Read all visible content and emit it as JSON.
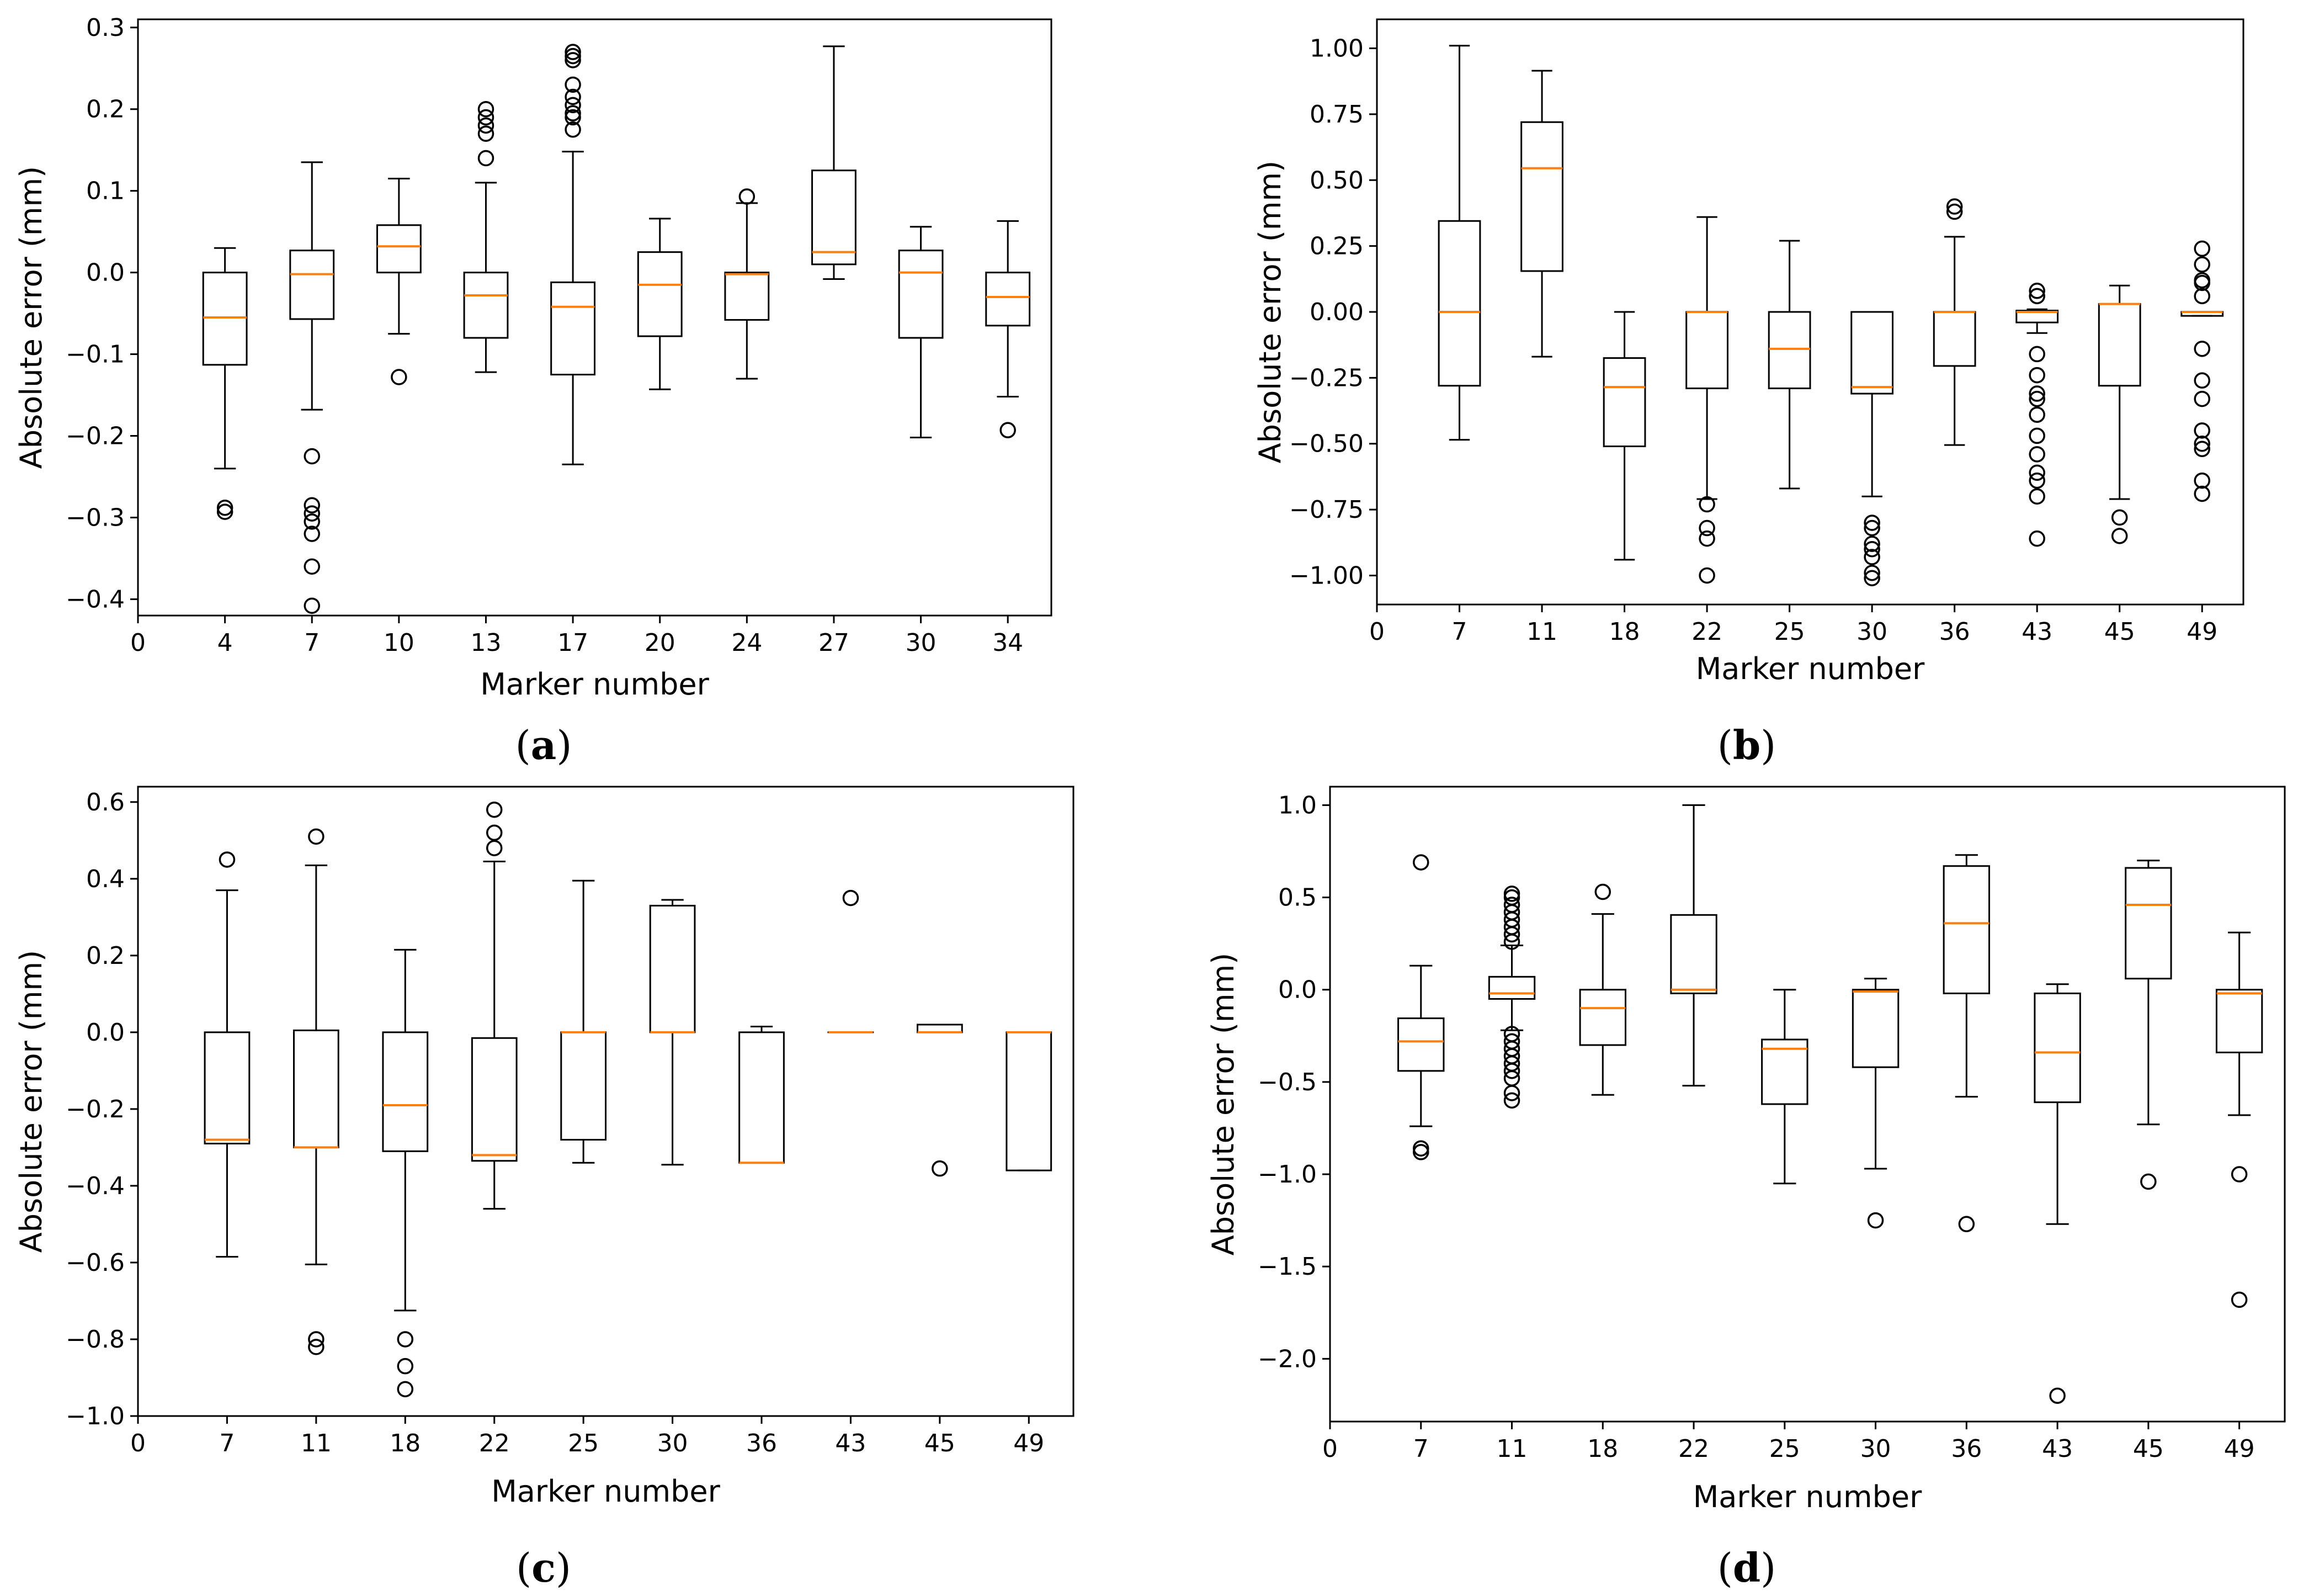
{
  "chart_data": [
    {
      "type": "box",
      "title": "",
      "caption_letter": "a",
      "xlabel": "Marker number",
      "ylabel": "Absolute error (mm)",
      "x_ticks": [
        "0",
        "4",
        "7",
        "10",
        "13",
        "17",
        "20",
        "24",
        "27",
        "30",
        "34"
      ],
      "ylim": [
        -0.42,
        0.31
      ],
      "y_ticks": [
        0.3,
        0.2,
        0.1,
        0.0,
        -0.1,
        -0.2,
        -0.3,
        -0.4
      ],
      "y_tick_labels": [
        "0.3",
        "0.2",
        "0.1",
        "0.0",
        "−0.1",
        "−0.2",
        "−0.3",
        "−0.4"
      ],
      "boxes": [
        {
          "label": "4",
          "whisker_low": -0.24,
          "q1": -0.113,
          "median": -0.055,
          "q3": 0.0,
          "whisker_high": 0.03,
          "outliers": [
            -0.288,
            -0.293
          ]
        },
        {
          "label": "7",
          "whisker_low": -0.168,
          "q1": -0.057,
          "median": -0.002,
          "q3": 0.027,
          "whisker_high": 0.135,
          "outliers": [
            -0.225,
            -0.285,
            -0.295,
            -0.305,
            -0.32,
            -0.36,
            -0.408
          ]
        },
        {
          "label": "10",
          "whisker_low": -0.075,
          "q1": 0.0,
          "median": 0.032,
          "q3": 0.058,
          "whisker_high": 0.115,
          "outliers": [
            -0.128
          ]
        },
        {
          "label": "13",
          "whisker_low": -0.122,
          "q1": -0.08,
          "median": -0.028,
          "q3": 0.0,
          "whisker_high": 0.11,
          "outliers": [
            0.14,
            0.17,
            0.18,
            0.19,
            0.2
          ]
        },
        {
          "label": "17",
          "whisker_low": -0.235,
          "q1": -0.125,
          "median": -0.042,
          "q3": -0.012,
          "whisker_high": 0.148,
          "outliers": [
            0.175,
            0.19,
            0.195,
            0.205,
            0.215,
            0.23,
            0.26,
            0.265,
            0.27
          ]
        },
        {
          "label": "20",
          "whisker_low": -0.143,
          "q1": -0.078,
          "median": -0.015,
          "q3": 0.025,
          "whisker_high": 0.066,
          "outliers": []
        },
        {
          "label": "24",
          "whisker_low": -0.13,
          "q1": -0.058,
          "median": -0.002,
          "q3": 0.0,
          "whisker_high": 0.085,
          "outliers": [
            0.093
          ]
        },
        {
          "label": "27",
          "whisker_low": -0.008,
          "q1": 0.01,
          "median": 0.025,
          "q3": 0.125,
          "whisker_high": 0.277,
          "outliers": []
        },
        {
          "label": "30",
          "whisker_low": -0.202,
          "q1": -0.08,
          "median": 0.0,
          "q3": 0.027,
          "whisker_high": 0.056,
          "outliers": []
        },
        {
          "label": "34",
          "whisker_low": -0.152,
          "q1": -0.065,
          "median": -0.03,
          "q3": 0.0,
          "whisker_high": 0.063,
          "outliers": [
            -0.193
          ]
        }
      ]
    },
    {
      "type": "box",
      "title": "",
      "caption_letter": "b",
      "xlabel": "Marker number",
      "ylabel": "Absolute error (mm)",
      "x_ticks": [
        "0",
        "7",
        "11",
        "18",
        "22",
        "25",
        "30",
        "36",
        "43",
        "45",
        "49"
      ],
      "ylim": [
        -1.11,
        1.11
      ],
      "y_ticks": [
        1.0,
        0.75,
        0.5,
        0.25,
        0.0,
        -0.25,
        -0.5,
        -0.75,
        -1.0
      ],
      "y_tick_labels": [
        "1.00",
        "0.75",
        "0.50",
        "0.25",
        "0.00",
        "−0.25",
        "−0.50",
        "−0.75",
        "−1.00"
      ],
      "boxes": [
        {
          "label": "7",
          "whisker_low": -0.485,
          "q1": -0.28,
          "median": 0.0,
          "q3": 0.345,
          "whisker_high": 1.01,
          "outliers": []
        },
        {
          "label": "11",
          "whisker_low": -0.17,
          "q1": 0.155,
          "median": 0.545,
          "q3": 0.72,
          "whisker_high": 0.915,
          "outliers": []
        },
        {
          "label": "18",
          "whisker_low": -0.94,
          "q1": -0.51,
          "median": -0.285,
          "q3": -0.175,
          "whisker_high": 0.0,
          "outliers": []
        },
        {
          "label": "22",
          "whisker_low": -0.71,
          "q1": -0.29,
          "median": 0.0,
          "q3": 0.0,
          "whisker_high": 0.36,
          "outliers": [
            -0.73,
            -0.82,
            -0.86,
            -1.0
          ]
        },
        {
          "label": "25",
          "whisker_low": -0.67,
          "q1": -0.29,
          "median": -0.14,
          "q3": 0.0,
          "whisker_high": 0.27,
          "outliers": []
        },
        {
          "label": "30",
          "whisker_low": -0.7,
          "q1": -0.31,
          "median": -0.285,
          "q3": 0.0,
          "whisker_high": 0.0,
          "outliers": [
            -0.8,
            -0.82,
            -0.88,
            -0.9,
            -0.93,
            -0.99,
            -1.01
          ]
        },
        {
          "label": "36",
          "whisker_low": -0.505,
          "q1": -0.205,
          "median": 0.0,
          "q3": 0.0,
          "whisker_high": 0.285,
          "outliers": [
            0.38,
            0.4
          ]
        },
        {
          "label": "43",
          "whisker_low": -0.08,
          "q1": -0.04,
          "median": 0.0,
          "q3": 0.005,
          "whisker_high": 0.01,
          "outliers": [
            0.06,
            0.08,
            -0.16,
            -0.24,
            -0.31,
            -0.33,
            -0.39,
            -0.47,
            -0.54,
            -0.61,
            -0.64,
            -0.7,
            -0.86
          ]
        },
        {
          "label": "45",
          "whisker_low": -0.71,
          "q1": -0.28,
          "median": 0.03,
          "q3": 0.03,
          "whisker_high": 0.1,
          "outliers": [
            -0.78,
            -0.85
          ]
        },
        {
          "label": "49",
          "whisker_low": -0.015,
          "q1": -0.015,
          "median": 0.0,
          "q3": 0.0,
          "whisker_high": 0.0,
          "outliers": [
            0.24,
            0.18,
            0.12,
            0.11,
            0.06,
            -0.14,
            -0.26,
            -0.33,
            -0.45,
            -0.5,
            -0.52,
            -0.64,
            -0.69
          ]
        }
      ]
    },
    {
      "type": "box",
      "title": "",
      "caption_letter": "c",
      "xlabel": "Marker number",
      "ylabel": "Absolute error (mm)",
      "x_ticks": [
        "0",
        "7",
        "11",
        "18",
        "22",
        "25",
        "30",
        "36",
        "43",
        "45",
        "49"
      ],
      "ylim": [
        -1.0,
        0.64
      ],
      "y_ticks": [
        0.6,
        0.4,
        0.2,
        0.0,
        -0.2,
        -0.4,
        -0.6,
        -0.8,
        -1.0
      ],
      "y_tick_labels": [
        "0.6",
        "0.4",
        "0.2",
        "0.0",
        "−0.2",
        "−0.4",
        "−0.6",
        "−0.8",
        "−1.0"
      ],
      "boxes": [
        {
          "label": "7",
          "whisker_low": -0.585,
          "q1": -0.29,
          "median": -0.28,
          "q3": 0.0,
          "whisker_high": 0.37,
          "outliers": [
            0.45
          ]
        },
        {
          "label": "11",
          "whisker_low": -0.605,
          "q1": -0.3,
          "median": -0.3,
          "q3": 0.005,
          "whisker_high": 0.435,
          "outliers": [
            0.51,
            -0.8,
            -0.82
          ]
        },
        {
          "label": "18",
          "whisker_low": -0.725,
          "q1": -0.31,
          "median": -0.19,
          "q3": 0.0,
          "whisker_high": 0.215,
          "outliers": [
            -0.8,
            -0.87,
            -0.93
          ]
        },
        {
          "label": "22",
          "whisker_low": -0.46,
          "q1": -0.335,
          "median": -0.32,
          "q3": -0.015,
          "whisker_high": 0.445,
          "outliers": [
            0.48,
            0.52,
            0.58
          ]
        },
        {
          "label": "25",
          "whisker_low": -0.34,
          "q1": -0.28,
          "median": 0.0,
          "q3": 0.0,
          "whisker_high": 0.395,
          "outliers": []
        },
        {
          "label": "30",
          "whisker_low": -0.345,
          "q1": 0.0,
          "median": 0.0,
          "q3": 0.33,
          "whisker_high": 0.345,
          "outliers": []
        },
        {
          "label": "36",
          "whisker_low": -0.34,
          "q1": -0.34,
          "median": -0.34,
          "q3": 0.0,
          "whisker_high": 0.015,
          "outliers": []
        },
        {
          "label": "43",
          "whisker_low": 0.0,
          "q1": 0.0,
          "median": 0.0,
          "q3": 0.0,
          "whisker_high": 0.0,
          "outliers": [
            0.35
          ]
        },
        {
          "label": "45",
          "whisker_low": 0.0,
          "q1": 0.0,
          "median": 0.0,
          "q3": 0.02,
          "whisker_high": 0.02,
          "outliers": [
            -0.355
          ]
        },
        {
          "label": "49",
          "whisker_low": -0.36,
          "q1": -0.36,
          "median": 0.0,
          "q3": 0.0,
          "whisker_high": 0.0,
          "outliers": []
        }
      ]
    },
    {
      "type": "box",
      "title": "",
      "caption_letter": "d",
      "xlabel": "Marker number",
      "ylabel": "Absolute error (mm)",
      "x_ticks": [
        "0",
        "7",
        "11",
        "18",
        "22",
        "25",
        "30",
        "36",
        "43",
        "45",
        "49"
      ],
      "ylim": [
        -2.34,
        1.1
      ],
      "y_ticks": [
        1.0,
        0.5,
        0.0,
        -0.5,
        -1.0,
        -1.5,
        -2.0
      ],
      "y_tick_labels": [
        "1.0",
        "0.5",
        "0.0",
        "−0.5",
        "−1.0",
        "−1.5",
        "−2.0"
      ],
      "boxes": [
        {
          "label": "7",
          "whisker_low": -0.74,
          "q1": -0.44,
          "median": -0.28,
          "q3": -0.155,
          "whisker_high": 0.13,
          "outliers": [
            0.69,
            -0.86,
            -0.88
          ]
        },
        {
          "label": "11",
          "whisker_low": -0.22,
          "q1": -0.05,
          "median": -0.02,
          "q3": 0.07,
          "whisker_high": 0.24,
          "outliers": [
            0.26,
            0.3,
            0.34,
            0.38,
            0.42,
            0.46,
            0.5,
            0.52,
            -0.24,
            -0.28,
            -0.32,
            -0.36,
            -0.4,
            -0.44,
            -0.48,
            -0.56,
            -0.6
          ]
        },
        {
          "label": "18",
          "whisker_low": -0.57,
          "q1": -0.3,
          "median": -0.1,
          "q3": 0.0,
          "whisker_high": 0.41,
          "outliers": [
            0.53
          ]
        },
        {
          "label": "22",
          "whisker_low": -0.52,
          "q1": -0.02,
          "median": 0.0,
          "q3": 0.405,
          "whisker_high": 1.0,
          "outliers": []
        },
        {
          "label": "25",
          "whisker_low": -1.05,
          "q1": -0.62,
          "median": -0.32,
          "q3": -0.27,
          "whisker_high": 0.0,
          "outliers": []
        },
        {
          "label": "30",
          "whisker_low": -0.97,
          "q1": -0.42,
          "median": -0.01,
          "q3": 0.0,
          "whisker_high": 0.06,
          "outliers": [
            -1.25
          ]
        },
        {
          "label": "36",
          "whisker_low": -0.58,
          "q1": -0.02,
          "median": 0.36,
          "q3": 0.67,
          "whisker_high": 0.73,
          "outliers": [
            -1.27
          ]
        },
        {
          "label": "43",
          "whisker_low": -1.27,
          "q1": -0.61,
          "median": -0.34,
          "q3": -0.02,
          "whisker_high": 0.03,
          "outliers": [
            -2.2
          ]
        },
        {
          "label": "45",
          "whisker_low": -0.73,
          "q1": 0.06,
          "median": 0.46,
          "q3": 0.66,
          "whisker_high": 0.7,
          "outliers": [
            -1.04
          ]
        },
        {
          "label": "49",
          "whisker_low": -0.68,
          "q1": -0.34,
          "median": -0.02,
          "q3": 0.0,
          "whisker_high": 0.31,
          "outliers": [
            -1.0,
            -1.68
          ]
        }
      ]
    }
  ],
  "colors": {
    "median": "#ff7f0e",
    "axis": "#000000",
    "box": "#000000",
    "background": "#ffffff"
  }
}
